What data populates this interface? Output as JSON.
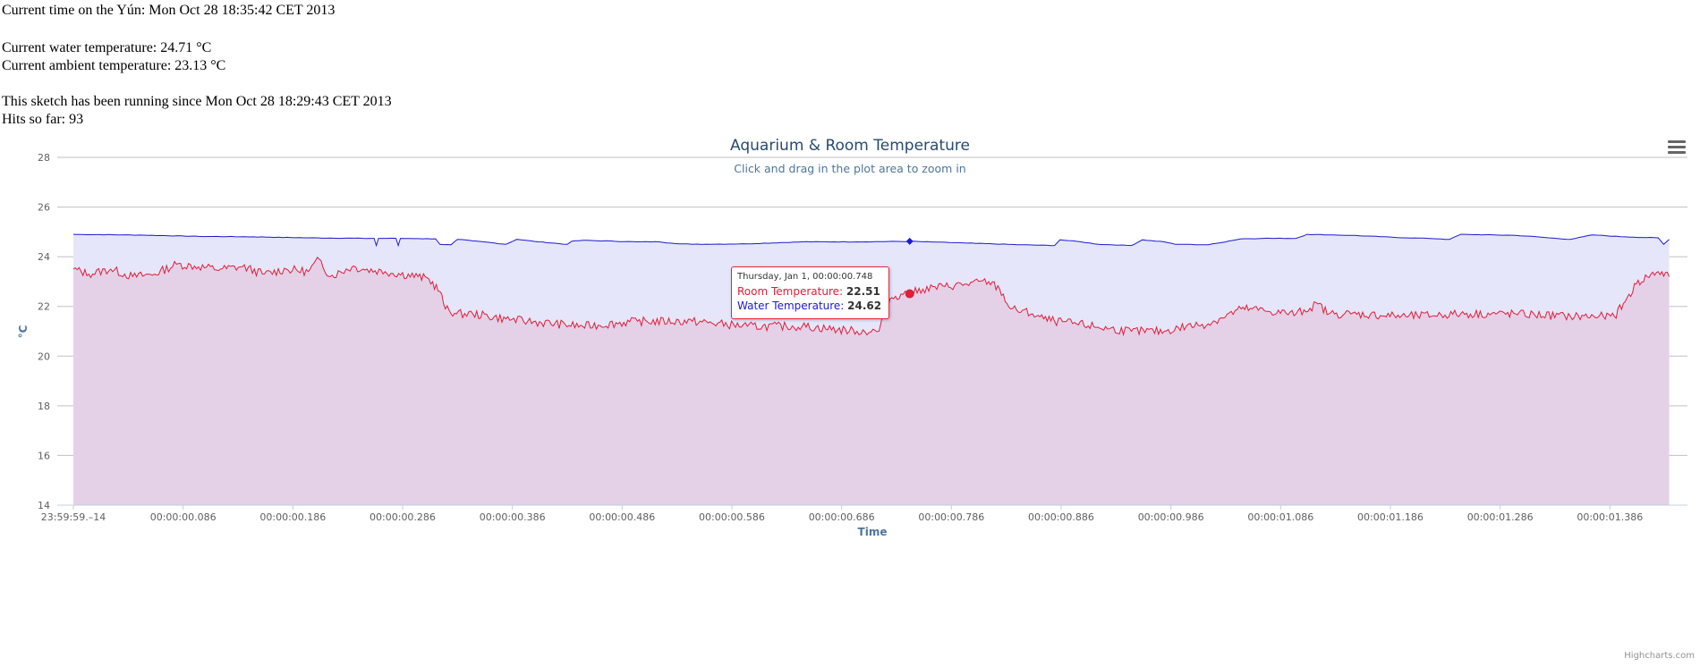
{
  "status": {
    "current_time": "Current time on the Yún: Mon Oct 28 18:35:42 CET 2013",
    "water_temp": "Current water temperature: 24.71 °C",
    "ambient_temp": "Current ambient temperature: 23.13 °C",
    "running_since": "This sketch has been running since Mon Oct 28 18:29:43 CET 2013",
    "hits": "Hits so far: 93"
  },
  "chart": {
    "title": "Aquarium & Room Temperature",
    "subtitle": "Click and drag in the plot area to zoom in",
    "menu_icon": "hamburger-menu-icon",
    "credits": "Highcharts.com",
    "tooltip": {
      "date": "Thursday, Jan 1, 00:00:00.748",
      "room_label": "Room Temperature:",
      "room_value": "22.51",
      "water_label": "Water Temperature:",
      "water_value": "24.62"
    }
  },
  "chart_data": {
    "type": "area",
    "title": "Aquarium & Room Temperature",
    "subtitle": "Click and drag in the plot area to zoom in",
    "xlabel": "Time",
    "ylabel": "°C",
    "ylim": [
      14,
      28
    ],
    "yticks": [
      14,
      16,
      18,
      20,
      22,
      24,
      26,
      28
    ],
    "xlim": [
      -0.014,
      1.442
    ],
    "xtick_values": [
      -0.014,
      0.086,
      0.186,
      0.286,
      0.386,
      0.486,
      0.586,
      0.686,
      0.786,
      0.886,
      0.986,
      1.086,
      1.186,
      1.286,
      1.386
    ],
    "xtick_labels": [
      "23:59:59.–14",
      "00:00:00.086",
      "00:00:00.186",
      "00:00:00.286",
      "00:00:00.386",
      "00:00:00.486",
      "00:00:00.586",
      "00:00:00.686",
      "00:00:00.786",
      "00:00:00.886",
      "00:00:00.986",
      "00:00:01.086",
      "00:00:01.186",
      "00:00:01.286",
      "00:00:01.386"
    ],
    "grid": true,
    "series": [
      {
        "name": "Water Temperature",
        "color": "#1a1ad6",
        "fill": "#e6e6fa",
        "x": [
          -0.014,
          0.05,
          0.1,
          0.15,
          0.2,
          0.25,
          0.26,
          0.262,
          0.264,
          0.28,
          0.282,
          0.284,
          0.3,
          0.316,
          0.32,
          0.33,
          0.336,
          0.35,
          0.37,
          0.38,
          0.39,
          0.41,
          0.436,
          0.44,
          0.45,
          0.5,
          0.52,
          0.53,
          0.55,
          0.6,
          0.65,
          0.7,
          0.748,
          0.8,
          0.85,
          0.88,
          0.885,
          0.9,
          0.92,
          0.95,
          0.96,
          0.98,
          0.99,
          1.0,
          1.02,
          1.05,
          1.07,
          1.1,
          1.11,
          1.13,
          1.15,
          1.2,
          1.22,
          1.24,
          1.25,
          1.3,
          1.32,
          1.33,
          1.35,
          1.37,
          1.4,
          1.43,
          1.435,
          1.44
        ],
        "y": [
          24.9,
          24.87,
          24.82,
          24.8,
          24.76,
          24.74,
          24.74,
          24.45,
          24.74,
          24.74,
          24.45,
          24.74,
          24.73,
          24.72,
          24.5,
          24.48,
          24.7,
          24.64,
          24.55,
          24.5,
          24.7,
          24.6,
          24.5,
          24.62,
          24.66,
          24.6,
          24.6,
          24.55,
          24.5,
          24.52,
          24.6,
          24.6,
          24.62,
          24.55,
          24.48,
          24.45,
          24.68,
          24.62,
          24.5,
          24.45,
          24.68,
          24.6,
          24.5,
          24.5,
          24.48,
          24.72,
          24.74,
          24.74,
          24.9,
          24.88,
          24.86,
          24.76,
          24.74,
          24.7,
          24.9,
          24.86,
          24.8,
          24.76,
          24.7,
          24.88,
          24.8,
          24.76,
          24.5,
          24.7
        ]
      },
      {
        "name": "Room Temperature",
        "color": "#e01e37",
        "fill": "#e4d1e8",
        "x": [
          -0.014,
          0.0,
          0.02,
          0.04,
          0.06,
          0.08,
          0.1,
          0.12,
          0.14,
          0.16,
          0.18,
          0.2,
          0.21,
          0.22,
          0.24,
          0.25,
          0.27,
          0.3,
          0.31,
          0.32,
          0.325,
          0.335,
          0.35,
          0.38,
          0.4,
          0.45,
          0.5,
          0.55,
          0.6,
          0.65,
          0.7,
          0.72,
          0.725,
          0.73,
          0.74,
          0.748,
          0.76,
          0.78,
          0.8,
          0.82,
          0.83,
          0.84,
          0.86,
          0.87,
          0.88,
          0.9,
          0.93,
          0.95,
          0.98,
          1.0,
          1.02,
          1.03,
          1.05,
          1.06,
          1.075,
          1.1,
          1.12,
          1.13,
          1.135,
          1.15,
          1.2,
          1.25,
          1.3,
          1.35,
          1.38,
          1.39,
          1.4,
          1.41,
          1.42,
          1.43,
          1.44
        ],
        "y": [
          23.5,
          23.3,
          23.5,
          23.2,
          23.3,
          23.7,
          23.6,
          23.5,
          23.6,
          23.3,
          23.5,
          23.4,
          23.9,
          23.2,
          23.6,
          23.5,
          23.4,
          23.2,
          23.1,
          22.6,
          21.9,
          21.7,
          21.7,
          21.5,
          21.4,
          21.2,
          21.4,
          21.4,
          21.2,
          21.2,
          21.0,
          21.0,
          21.8,
          22.3,
          22.5,
          22.51,
          22.7,
          22.8,
          22.9,
          23.0,
          22.7,
          21.9,
          21.7,
          21.5,
          21.4,
          21.3,
          21.1,
          21.0,
          21.0,
          21.2,
          21.3,
          21.5,
          21.9,
          21.9,
          21.8,
          21.7,
          22.1,
          21.7,
          21.7,
          21.7,
          21.6,
          21.7,
          21.7,
          21.6,
          21.6,
          21.6,
          22.2,
          22.9,
          23.2,
          23.4,
          23.2
        ]
      }
    ],
    "hover_x": 0.748,
    "legend": "none"
  }
}
